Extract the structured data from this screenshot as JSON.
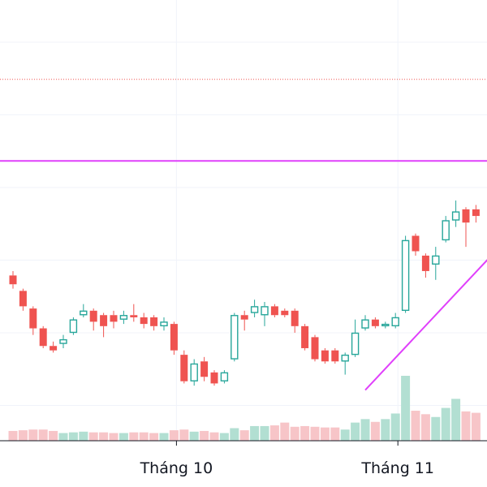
{
  "chart_data": {
    "type": "candlestick",
    "x_axis": {
      "tick_labels": [
        {
          "label": "Tháng 10",
          "index": 16
        },
        {
          "label": "Tháng 11",
          "index": 38
        }
      ]
    },
    "y_range": [
      0,
      10
    ],
    "grid": true,
    "colors": {
      "up": "#26a69a",
      "down": "#ef5350",
      "volume_up": "#b2dfd2",
      "volume_down": "#f7c5c8",
      "resistance_line": "#e040fb",
      "trend_line": "#e040fb",
      "dotted_level": "#ef5350",
      "grid": "#f0f3fa",
      "axis_line": "#131722"
    },
    "candles": [
      {
        "o": 3.75,
        "c": 3.55,
        "h": 3.85,
        "l": 3.45,
        "v": 0.7
      },
      {
        "o": 3.4,
        "c": 3.05,
        "h": 3.45,
        "l": 2.95,
        "v": 0.75
      },
      {
        "o": 3.0,
        "c": 2.55,
        "h": 3.05,
        "l": 2.4,
        "v": 0.8
      },
      {
        "o": 2.55,
        "c": 2.15,
        "h": 2.6,
        "l": 2.1,
        "v": 0.8
      },
      {
        "o": 2.15,
        "c": 2.05,
        "h": 2.25,
        "l": 2.0,
        "v": 0.7
      },
      {
        "o": 2.2,
        "c": 2.3,
        "h": 2.4,
        "l": 2.1,
        "v": 0.55
      },
      {
        "o": 2.45,
        "c": 2.75,
        "h": 2.8,
        "l": 2.4,
        "v": 0.6
      },
      {
        "o": 2.85,
        "c": 2.95,
        "h": 3.1,
        "l": 2.8,
        "v": 0.65
      },
      {
        "o": 2.95,
        "c": 2.7,
        "h": 3.0,
        "l": 2.5,
        "v": 0.6
      },
      {
        "o": 2.85,
        "c": 2.6,
        "h": 2.9,
        "l": 2.35,
        "v": 0.6
      },
      {
        "o": 2.85,
        "c": 2.7,
        "h": 2.95,
        "l": 2.55,
        "v": 0.55
      },
      {
        "o": 2.75,
        "c": 2.85,
        "h": 2.95,
        "l": 2.65,
        "v": 0.55
      },
      {
        "o": 2.85,
        "c": 2.8,
        "h": 3.1,
        "l": 2.7,
        "v": 0.6
      },
      {
        "o": 2.8,
        "c": 2.65,
        "h": 2.9,
        "l": 2.55,
        "v": 0.6
      },
      {
        "o": 2.8,
        "c": 2.6,
        "h": 2.85,
        "l": 2.5,
        "v": 0.55
      },
      {
        "o": 2.6,
        "c": 2.7,
        "h": 2.8,
        "l": 2.5,
        "v": 0.55
      },
      {
        "o": 2.65,
        "c": 2.05,
        "h": 2.7,
        "l": 1.95,
        "v": 0.75
      },
      {
        "o": 1.95,
        "c": 1.35,
        "h": 2.05,
        "l": 1.3,
        "v": 0.8
      },
      {
        "o": 1.35,
        "c": 1.75,
        "h": 1.85,
        "l": 1.25,
        "v": 0.65
      },
      {
        "o": 1.8,
        "c": 1.45,
        "h": 1.9,
        "l": 1.35,
        "v": 0.7
      },
      {
        "o": 1.55,
        "c": 1.3,
        "h": 1.6,
        "l": 1.25,
        "v": 0.6
      },
      {
        "o": 1.35,
        "c": 1.55,
        "h": 1.6,
        "l": 1.3,
        "v": 0.55
      },
      {
        "o": 1.85,
        "c": 2.85,
        "h": 2.9,
        "l": 1.8,
        "v": 0.9
      },
      {
        "o": 2.85,
        "c": 2.75,
        "h": 2.95,
        "l": 2.5,
        "v": 0.75
      },
      {
        "o": 2.9,
        "c": 3.05,
        "h": 3.2,
        "l": 2.8,
        "v": 1.05
      },
      {
        "o": 2.85,
        "c": 3.05,
        "h": 3.15,
        "l": 2.6,
        "v": 1.05
      },
      {
        "o": 3.05,
        "c": 2.85,
        "h": 3.1,
        "l": 2.8,
        "v": 1.1
      },
      {
        "o": 2.95,
        "c": 2.85,
        "h": 3.0,
        "l": 2.8,
        "v": 1.3
      },
      {
        "o": 2.95,
        "c": 2.6,
        "h": 3.0,
        "l": 2.45,
        "v": 1.0
      },
      {
        "o": 2.6,
        "c": 2.1,
        "h": 2.65,
        "l": 2.05,
        "v": 1.05
      },
      {
        "o": 2.35,
        "c": 1.85,
        "h": 2.4,
        "l": 1.8,
        "v": 1.0
      },
      {
        "o": 2.05,
        "c": 1.8,
        "h": 2.1,
        "l": 1.75,
        "v": 0.95
      },
      {
        "o": 2.05,
        "c": 1.8,
        "h": 2.1,
        "l": 1.75,
        "v": 0.95
      },
      {
        "o": 1.8,
        "c": 1.95,
        "h": 2.0,
        "l": 1.5,
        "v": 0.8
      },
      {
        "o": 1.95,
        "c": 2.45,
        "h": 2.75,
        "l": 1.9,
        "v": 1.3
      },
      {
        "o": 2.55,
        "c": 2.75,
        "h": 2.85,
        "l": 2.5,
        "v": 1.55
      },
      {
        "o": 2.75,
        "c": 2.6,
        "h": 2.8,
        "l": 2.55,
        "v": 1.35
      },
      {
        "o": 2.6,
        "c": 2.65,
        "h": 2.7,
        "l": 2.55,
        "v": 1.55
      },
      {
        "o": 2.6,
        "c": 2.8,
        "h": 2.9,
        "l": 2.55,
        "v": 1.95
      },
      {
        "o": 2.95,
        "c": 4.55,
        "h": 4.65,
        "l": 2.9,
        "v": 4.65
      },
      {
        "o": 4.65,
        "c": 4.3,
        "h": 4.7,
        "l": 4.2,
        "v": 2.15
      },
      {
        "o": 4.2,
        "c": 3.85,
        "h": 4.25,
        "l": 3.7,
        "v": 1.9
      },
      {
        "o": 4.0,
        "c": 4.2,
        "h": 4.4,
        "l": 3.65,
        "v": 1.7
      },
      {
        "o": 4.55,
        "c": 5.0,
        "h": 5.1,
        "l": 4.5,
        "v": 2.35
      },
      {
        "o": 5.0,
        "c": 5.2,
        "h": 5.45,
        "l": 4.85,
        "v": 3.0
      },
      {
        "o": 5.25,
        "c": 4.95,
        "h": 5.3,
        "l": 4.4,
        "v": 2.1
      },
      {
        "o": 5.25,
        "c": 5.1,
        "h": 5.35,
        "l": 4.95,
        "v": 2.0
      }
    ],
    "horizontal_lines": [
      {
        "role": "dotted",
        "y": 8.2
      },
      {
        "role": "resistance",
        "y": 6.35
      }
    ],
    "trend_line": {
      "from": {
        "i": 35,
        "y": 1.15
      },
      "to": {
        "i": 47,
        "y": 4.1
      }
    }
  }
}
